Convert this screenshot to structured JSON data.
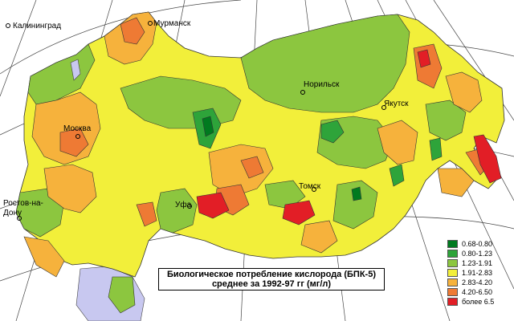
{
  "title": {
    "line1": "Биологическое потребление кислорода (БПК-5)",
    "line2": "среднее за 1992-97 гг (мг/л)"
  },
  "cities": {
    "kaliningrad": "Калининград",
    "murmansk": "Мурманск",
    "moskva": "Москва",
    "rostov_line1": "Ростов-на-",
    "rostov_line2": "Дону",
    "ufa": "Уфа",
    "tomsk": "Томск",
    "norilsk": "Норильск",
    "yakutsk": "Якутск"
  },
  "legend": [
    {
      "label": "0.68-0.80",
      "color": "#007a1f"
    },
    {
      "label": "0.80-1.23",
      "color": "#2ea43a"
    },
    {
      "label": "1.23-1.91",
      "color": "#8cc63f"
    },
    {
      "label": "1.91-2.83",
      "color": "#f2ef3a"
    },
    {
      "label": "2.83-4.20",
      "color": "#f6b23c"
    },
    {
      "label": "4.20-6.50",
      "color": "#ee7a34"
    },
    {
      "label": "более 6.5",
      "color": "#e21e26"
    }
  ],
  "colors": {
    "water": "#c8c8f0",
    "neighbor": "#c8c8f0",
    "background": "#ffffff",
    "graticule": "#333333"
  }
}
